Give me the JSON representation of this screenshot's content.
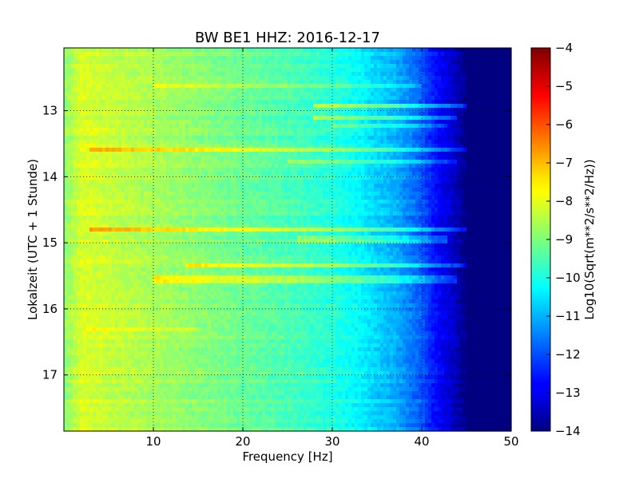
{
  "chart_data": {
    "type": "heatmap",
    "title": "BW BE1 HHZ: 2016-12-17",
    "xlabel": "Frequency [Hz]",
    "ylabel": "Lokalzeit (UTC + 1 Stunde)",
    "xlim": [
      0,
      50
    ],
    "ylim": [
      12.05,
      17.85
    ],
    "y_inverted": true,
    "xticks": [
      10,
      20,
      30,
      40,
      50
    ],
    "xtick_labels": [
      "10",
      "20",
      "30",
      "40",
      "50"
    ],
    "yticks": [
      13,
      14,
      15,
      16,
      17
    ],
    "ytick_labels": [
      "13",
      "14",
      "15",
      "16",
      "17"
    ],
    "grid": true,
    "colormap": "jet",
    "colorbar": {
      "label": "Log10(Sqrt(m**2/s**2/Hz))",
      "min": -14,
      "max": -4,
      "ticks": [
        -4,
        -5,
        -6,
        -7,
        -8,
        -9,
        -10,
        -11,
        -12,
        -13,
        -14
      ],
      "tick_labels": [
        "−4",
        "−5",
        "−6",
        "−7",
        "−8",
        "−9",
        "−10",
        "−11",
        "−12",
        "−13",
        "−14"
      ]
    },
    "spectrum_profile": {
      "frequency_hz": [
        0,
        2,
        5,
        10,
        15,
        20,
        25,
        30,
        33,
        35,
        37,
        39,
        40,
        41,
        42,
        43,
        44,
        45,
        46,
        50
      ],
      "level": [
        -8.9,
        -8.1,
        -8.3,
        -8.6,
        -8.9,
        -9.2,
        -9.5,
        -9.9,
        -10.3,
        -10.7,
        -11.0,
        -11.6,
        -11.9,
        -12.4,
        -12.8,
        -13.1,
        -13.5,
        -14.0,
        -14.0,
        -14.0
      ]
    },
    "bands": [
      {
        "time": 12.6,
        "f_start": 10,
        "f_end": 40,
        "boost": 0.7
      },
      {
        "time": 12.95,
        "f_start": 28,
        "f_end": 45,
        "boost": 1.6
      },
      {
        "time": 13.1,
        "f_start": 28,
        "f_end": 44,
        "boost": 1.4
      },
      {
        "time": 13.25,
        "f_start": 30,
        "f_end": 43,
        "boost": 0.9
      },
      {
        "time": 13.6,
        "f_start": 3,
        "f_end": 45,
        "boost": 1.2
      },
      {
        "time": 13.75,
        "f_start": 25,
        "f_end": 44,
        "boost": 0.8
      },
      {
        "time": 14.8,
        "f_start": 3,
        "f_end": 45,
        "boost": 1.3
      },
      {
        "time": 14.95,
        "f_start": 26,
        "f_end": 43,
        "boost": 0.9
      },
      {
        "time": 15.35,
        "f_start": 13.5,
        "f_end": 45,
        "boost": 1.3
      },
      {
        "time": 15.55,
        "f_start": 10,
        "f_end": 44,
        "boost": 1.1
      },
      {
        "time": 16.3,
        "f_start": 2,
        "f_end": 15,
        "boost": 0.5
      }
    ]
  }
}
